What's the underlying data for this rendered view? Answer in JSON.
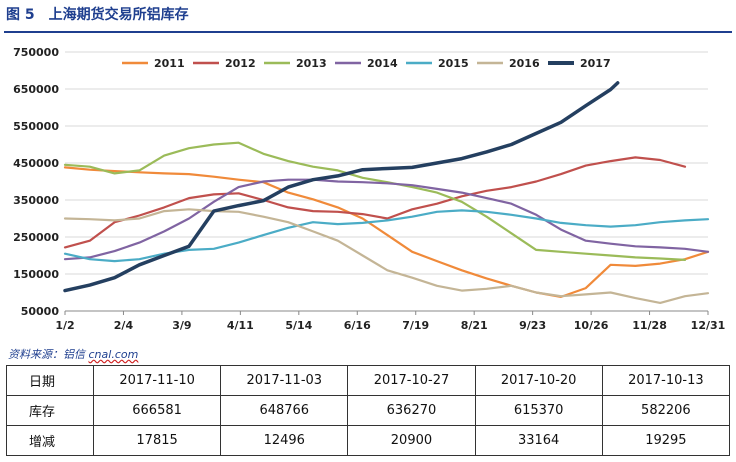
{
  "figure": {
    "label": "图 5",
    "title": "上海期货交易所铝库存",
    "source_prefix": "资料来源：铝信 ",
    "source_site": "cnal.com"
  },
  "chart_data": {
    "type": "line",
    "title": "",
    "xlabel": "",
    "ylabel": "",
    "x_ticks": [
      "1/2",
      "2/4",
      "3/9",
      "4/11",
      "5/14",
      "6/16",
      "7/19",
      "8/21",
      "9/23",
      "10/26",
      "11/28",
      "12/31"
    ],
    "y_ticks": [
      "750000",
      "650000",
      "550000",
      "450000",
      "350000",
      "250000",
      "150000",
      "50000"
    ],
    "ylim": [
      50000,
      750000
    ],
    "grid": "horizontal",
    "legend_placement": "top",
    "series": [
      {
        "name": "2011",
        "color": "#f08a3a",
        "x": [
          "1/2",
          "1/16",
          "1/30",
          "2/13",
          "2/27",
          "3/13",
          "3/27",
          "4/10",
          "4/24",
          "5/8",
          "5/22",
          "6/5",
          "6/19",
          "7/3",
          "7/17",
          "7/31",
          "8/14",
          "8/28",
          "9/11",
          "9/25",
          "10/9",
          "10/23",
          "11/6",
          "11/20",
          "12/4",
          "12/18",
          "12/31"
        ],
        "values": [
          438000,
          432000,
          428000,
          425000,
          422000,
          420000,
          413000,
          405000,
          398000,
          370000,
          352000,
          330000,
          300000,
          255000,
          210000,
          185000,
          160000,
          138000,
          118000,
          100000,
          88000,
          112000,
          175000,
          172000,
          178000,
          190000,
          210000
        ]
      },
      {
        "name": "2012",
        "color": "#c0504d",
        "x": [
          "1/2",
          "1/16",
          "1/30",
          "2/13",
          "2/27",
          "3/13",
          "3/27",
          "4/10",
          "4/24",
          "5/8",
          "5/22",
          "6/5",
          "6/19",
          "7/3",
          "7/17",
          "7/31",
          "8/14",
          "8/28",
          "9/11",
          "9/25",
          "10/9",
          "10/23",
          "11/6",
          "11/20",
          "12/4",
          "12/18"
        ],
        "values": [
          222000,
          240000,
          290000,
          308000,
          330000,
          355000,
          365000,
          368000,
          350000,
          330000,
          320000,
          318000,
          312000,
          300000,
          325000,
          340000,
          360000,
          375000,
          385000,
          400000,
          420000,
          443000,
          455000,
          465000,
          458000,
          440000
        ]
      },
      {
        "name": "2013",
        "color": "#9bbb59",
        "x": [
          "1/2",
          "1/16",
          "1/30",
          "2/13",
          "2/27",
          "3/13",
          "3/27",
          "4/10",
          "4/24",
          "5/8",
          "5/22",
          "6/5",
          "6/19",
          "7/3",
          "7/17",
          "7/31",
          "8/14",
          "8/28",
          "9/11",
          "9/25",
          "10/9",
          "10/23",
          "11/6",
          "11/20",
          "12/4",
          "12/18"
        ],
        "values": [
          445000,
          440000,
          422000,
          430000,
          470000,
          490000,
          500000,
          505000,
          475000,
          455000,
          440000,
          430000,
          410000,
          398000,
          385000,
          370000,
          345000,
          305000,
          260000,
          215000,
          210000,
          205000,
          200000,
          195000,
          192000,
          188000
        ]
      },
      {
        "name": "2014",
        "color": "#8064a2",
        "x": [
          "1/2",
          "1/16",
          "1/30",
          "2/13",
          "2/27",
          "3/13",
          "3/27",
          "4/10",
          "4/24",
          "5/8",
          "5/22",
          "6/5",
          "6/19",
          "7/3",
          "7/17",
          "7/31",
          "8/14",
          "8/28",
          "9/11",
          "9/25",
          "10/9",
          "10/23",
          "11/6",
          "11/20",
          "12/4",
          "12/18",
          "12/31"
        ],
        "values": [
          190000,
          195000,
          212000,
          235000,
          265000,
          300000,
          345000,
          385000,
          400000,
          405000,
          405000,
          400000,
          398000,
          395000,
          390000,
          380000,
          370000,
          355000,
          340000,
          310000,
          270000,
          240000,
          232000,
          225000,
          222000,
          218000,
          210000
        ]
      },
      {
        "name": "2015",
        "color": "#4bacc6",
        "x": [
          "1/2",
          "1/16",
          "1/30",
          "2/13",
          "2/27",
          "3/13",
          "3/27",
          "4/10",
          "4/24",
          "5/8",
          "5/22",
          "6/5",
          "6/19",
          "7/3",
          "7/17",
          "7/31",
          "8/14",
          "8/28",
          "9/11",
          "9/25",
          "10/9",
          "10/23",
          "11/6",
          "11/20",
          "12/4",
          "12/18",
          "12/31"
        ],
        "values": [
          205000,
          190000,
          185000,
          190000,
          205000,
          215000,
          218000,
          235000,
          255000,
          275000,
          290000,
          285000,
          288000,
          295000,
          305000,
          318000,
          322000,
          318000,
          310000,
          300000,
          288000,
          282000,
          278000,
          282000,
          290000,
          295000,
          298000
        ]
      },
      {
        "name": "2016",
        "color": "#c4b596",
        "x": [
          "1/2",
          "1/16",
          "1/30",
          "2/13",
          "2/27",
          "3/13",
          "3/27",
          "4/10",
          "4/24",
          "5/8",
          "5/22",
          "6/5",
          "6/19",
          "7/3",
          "7/17",
          "7/31",
          "8/14",
          "8/28",
          "9/11",
          "9/25",
          "10/9",
          "10/23",
          "11/6",
          "11/20",
          "12/4",
          "12/18",
          "12/31"
        ],
        "values": [
          300000,
          298000,
          295000,
          300000,
          320000,
          325000,
          320000,
          318000,
          305000,
          290000,
          265000,
          240000,
          200000,
          160000,
          140000,
          118000,
          105000,
          110000,
          118000,
          100000,
          90000,
          95000,
          100000,
          85000,
          72000,
          90000,
          98000
        ]
      },
      {
        "name": "2017",
        "color": "#243f60",
        "x": [
          "1/2",
          "1/16",
          "1/30",
          "2/13",
          "2/27",
          "3/13",
          "3/27",
          "4/10",
          "4/24",
          "5/8",
          "5/22",
          "6/5",
          "6/19",
          "7/3",
          "7/17",
          "7/31",
          "8/14",
          "8/28",
          "9/11",
          "9/25",
          "10/9",
          "10/23",
          "11/6",
          "11/10"
        ],
        "values": [
          105000,
          120000,
          140000,
          175000,
          200000,
          225000,
          320000,
          335000,
          348000,
          385000,
          405000,
          415000,
          432000,
          435000,
          438000,
          450000,
          462000,
          480000,
          500000,
          530000,
          560000,
          605000,
          648766,
          666581
        ]
      }
    ]
  },
  "table": {
    "row_heads": [
      "日期",
      "库存",
      "增减"
    ],
    "dates": [
      "2017-11-10",
      "2017-11-03",
      "2017-10-27",
      "2017-10-20",
      "2017-10-13"
    ],
    "stock": [
      "666581",
      "648766",
      "636270",
      "615370",
      "582206"
    ],
    "change": [
      "17815",
      "12496",
      "20900",
      "33164",
      "19295"
    ]
  }
}
